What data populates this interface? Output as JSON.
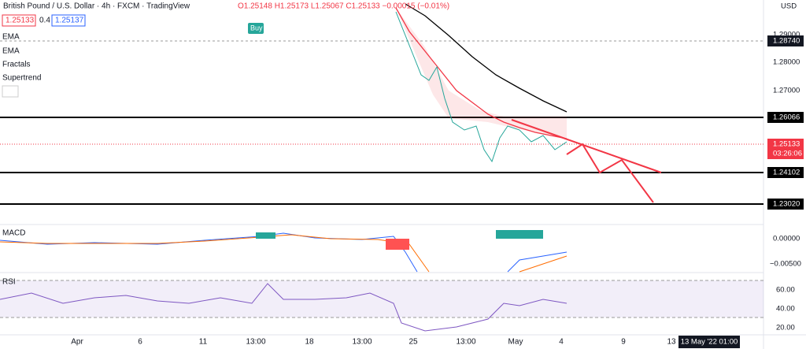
{
  "header": {
    "symbol": "British Pound / U.S. Dollar · 4h · FXCM · TradingView",
    "ohlc": "O1.25148 H1.25173 L1.25067 C1.25133 −0.00015 (−0.01%)",
    "bid": "1.25133",
    "spread": "0.4",
    "ask": "1.25137",
    "buy": "Buy"
  },
  "indicators": [
    "EMA",
    "EMA",
    "Fractals",
    "Supertrend"
  ],
  "price_axis": {
    "currency": "USD",
    "labels": [
      "1.29000",
      "1.28740",
      "1.28000",
      "1.27000",
      "1.26066",
      "1.25133",
      "03:26:06",
      "1.24102",
      "1.23020"
    ]
  },
  "macd": {
    "title": "MACD",
    "labels": [
      "0.00000",
      "−0.00500"
    ]
  },
  "rsi": {
    "title": "RSI",
    "labels": [
      "60.00",
      "40.00",
      "20.00"
    ]
  },
  "time_axis": {
    "labels": [
      "Apr",
      "6",
      "11",
      "13:00",
      "18",
      "13:00",
      "25",
      "13:00",
      "May",
      "4",
      "9",
      "13"
    ],
    "cursor": "13 May '22   01:00"
  }
}
